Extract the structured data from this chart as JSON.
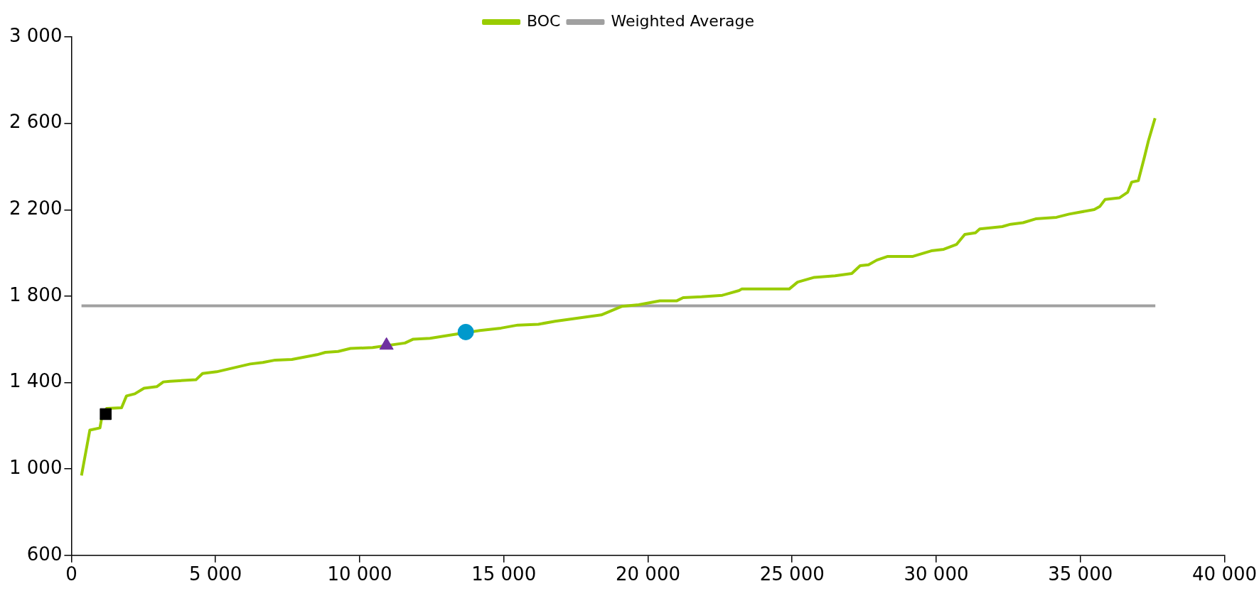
{
  "chart_data": {
    "type": "line",
    "xlim": [
      0,
      40000
    ],
    "ylim": [
      600,
      3000
    ],
    "xticks": [
      {
        "value": 0,
        "label": "0"
      },
      {
        "value": 5000,
        "label": "5 000"
      },
      {
        "value": 10000,
        "label": "10 000"
      },
      {
        "value": 15000,
        "label": "15 000"
      },
      {
        "value": 20000,
        "label": "20 000"
      },
      {
        "value": 25000,
        "label": "25 000"
      },
      {
        "value": 30000,
        "label": "30 000"
      },
      {
        "value": 35000,
        "label": "35 000"
      },
      {
        "value": 40000,
        "label": "40 000"
      }
    ],
    "yticks": [
      {
        "value": 600,
        "label": "600"
      },
      {
        "value": 1000,
        "label": "1 000"
      },
      {
        "value": 1400,
        "label": "1 400"
      },
      {
        "value": 1800,
        "label": "1 800"
      },
      {
        "value": 2200,
        "label": "2 200"
      },
      {
        "value": 2600,
        "label": "2 600"
      },
      {
        "value": 3000,
        "label": "3 000"
      }
    ],
    "grid": false,
    "legend": "top",
    "marker": "none",
    "series": [
      {
        "name": "BOC",
        "color": "#99cc00",
        "x": [
          350,
          640,
          990,
          1070,
          1220,
          1740,
          1910,
          2200,
          2520,
          2960,
          3190,
          3420,
          4320,
          4550,
          5040,
          6200,
          6640,
          7070,
          7650,
          8520,
          8810,
          9250,
          9680,
          10450,
          11570,
          11860,
          12440,
          13250,
          14170,
          14900,
          15480,
          16200,
          16780,
          17800,
          18380,
          19100,
          19680,
          20410,
          20990,
          21220,
          21860,
          22580,
          23160,
          23250,
          24900,
          25190,
          25770,
          26490,
          27070,
          27360,
          27650,
          27940,
          28320,
          29190,
          29830,
          30260,
          30700,
          30990,
          31360,
          31510,
          32290,
          32580,
          33010,
          33450,
          34170,
          34610,
          35480,
          35680,
          35860,
          36350,
          36640,
          36780,
          37010,
          37220,
          37360,
          37590
        ],
        "values": [
          970,
          1180,
          1190,
          1250,
          1280,
          1283,
          1338,
          1348,
          1374,
          1381,
          1403,
          1406,
          1413,
          1442,
          1450,
          1486,
          1493,
          1504,
          1507,
          1529,
          1540,
          1544,
          1558,
          1562,
          1583,
          1601,
          1605,
          1622,
          1641,
          1652,
          1666,
          1670,
          1684,
          1703,
          1713,
          1753,
          1760,
          1778,
          1778,
          1793,
          1797,
          1804,
          1826,
          1833,
          1833,
          1865,
          1887,
          1894,
          1905,
          1941,
          1945,
          1967,
          1984,
          1984,
          2010,
          2017,
          2039,
          2086,
          2093,
          2111,
          2122,
          2133,
          2140,
          2158,
          2165,
          2180,
          2201,
          2216,
          2248,
          2255,
          2281,
          2328,
          2335,
          2443,
          2519,
          2624
        ]
      },
      {
        "name": "Weighted Average",
        "color": "#a0a0a0",
        "x": [
          350,
          37600
        ],
        "values": [
          1755,
          1755
        ]
      },
      {
        "type": "scatter",
        "marker": "circle",
        "color": "#0099cc",
        "x": [
          13680
        ],
        "values": [
          1634
        ]
      },
      {
        "type": "scatter",
        "marker": "square",
        "color": "#000000",
        "x": [
          1190
        ],
        "values": [
          1254
        ]
      },
      {
        "type": "scatter",
        "marker": "triangle",
        "color": "#7030a0",
        "x": [
          10930
        ],
        "values": [
          1572
        ]
      }
    ]
  }
}
